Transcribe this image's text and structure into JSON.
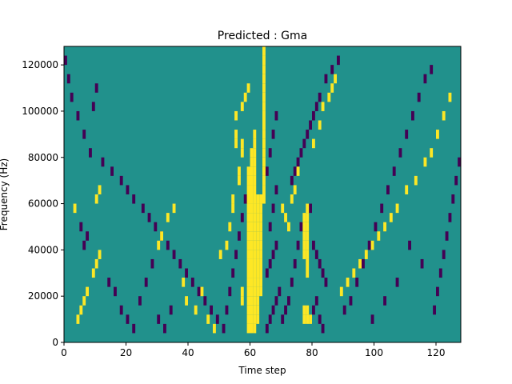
{
  "chart_data": {
    "type": "heatmap",
    "title": "Predicted : Gma",
    "xlabel": "Time step",
    "ylabel": "Frequency (Hz)",
    "xlim": [
      0,
      128
    ],
    "ylim": [
      0,
      128000
    ],
    "x_ticks": [
      0,
      20,
      40,
      60,
      80,
      100,
      120
    ],
    "y_ticks": [
      0,
      20000,
      40000,
      60000,
      80000,
      100000,
      120000
    ],
    "x_tick_labels": [
      "0",
      "20",
      "40",
      "60",
      "80",
      "100",
      "120"
    ],
    "y_tick_labels": [
      "0",
      "20000",
      "40000",
      "60000",
      "80000",
      "100000",
      "120000"
    ],
    "grid": false,
    "colormap": "viridis",
    "level_colors": {
      "low": "#440154",
      "mid": "#21918c",
      "high": "#fde725"
    },
    "background_level": "mid",
    "cell_height_hz": 4000,
    "high_cells": [
      [
        59,
        1
      ],
      [
        59,
        2
      ],
      [
        59,
        3
      ],
      [
        59,
        4
      ],
      [
        59,
        5
      ],
      [
        59,
        6
      ],
      [
        59,
        7
      ],
      [
        59,
        8
      ],
      [
        59,
        9
      ],
      [
        59,
        10
      ],
      [
        59,
        11
      ],
      [
        59,
        12
      ],
      [
        59,
        13
      ],
      [
        59,
        14
      ],
      [
        59,
        15
      ],
      [
        59,
        16
      ],
      [
        59,
        17
      ],
      [
        59,
        18
      ],
      [
        60,
        1
      ],
      [
        60,
        2
      ],
      [
        60,
        3
      ],
      [
        60,
        4
      ],
      [
        60,
        5
      ],
      [
        60,
        6
      ],
      [
        60,
        7
      ],
      [
        60,
        8
      ],
      [
        60,
        9
      ],
      [
        60,
        10
      ],
      [
        60,
        11
      ],
      [
        60,
        12
      ],
      [
        60,
        13
      ],
      [
        60,
        14
      ],
      [
        60,
        15
      ],
      [
        60,
        16
      ],
      [
        60,
        17
      ],
      [
        60,
        18
      ],
      [
        60,
        19
      ],
      [
        60,
        20
      ],
      [
        61,
        1
      ],
      [
        61,
        2
      ],
      [
        61,
        3
      ],
      [
        61,
        4
      ],
      [
        61,
        5
      ],
      [
        61,
        6
      ],
      [
        61,
        7
      ],
      [
        61,
        8
      ],
      [
        61,
        9
      ],
      [
        61,
        10
      ],
      [
        61,
        11
      ],
      [
        61,
        12
      ],
      [
        61,
        13
      ],
      [
        61,
        14
      ],
      [
        61,
        15
      ],
      [
        61,
        16
      ],
      [
        61,
        17
      ],
      [
        61,
        18
      ],
      [
        61,
        19
      ],
      [
        61,
        20
      ],
      [
        61,
        21
      ],
      [
        61,
        22
      ],
      [
        62,
        2
      ],
      [
        62,
        3
      ],
      [
        62,
        4
      ],
      [
        62,
        5
      ],
      [
        62,
        6
      ],
      [
        62,
        7
      ],
      [
        62,
        8
      ],
      [
        62,
        9
      ],
      [
        62,
        10
      ],
      [
        62,
        11
      ],
      [
        62,
        12
      ],
      [
        62,
        13
      ],
      [
        62,
        14
      ],
      [
        62,
        15
      ],
      [
        63,
        5
      ],
      [
        63,
        6
      ],
      [
        63,
        7
      ],
      [
        63,
        8
      ],
      [
        63,
        9
      ],
      [
        63,
        10
      ],
      [
        63,
        11
      ],
      [
        63,
        12
      ],
      [
        63,
        13
      ],
      [
        63,
        14
      ],
      [
        63,
        15
      ],
      [
        64,
        15
      ],
      [
        64,
        16
      ],
      [
        64,
        17
      ],
      [
        64,
        18
      ],
      [
        64,
        19
      ],
      [
        64,
        20
      ],
      [
        64,
        21
      ],
      [
        64,
        22
      ],
      [
        64,
        23
      ],
      [
        64,
        24
      ],
      [
        64,
        25
      ],
      [
        64,
        26
      ],
      [
        64,
        27
      ],
      [
        64,
        28
      ],
      [
        64,
        29
      ],
      [
        64,
        30
      ],
      [
        64,
        31
      ],
      [
        77,
        9
      ],
      [
        77,
        10
      ],
      [
        77,
        11
      ],
      [
        77,
        12
      ],
      [
        77,
        13
      ],
      [
        78,
        7
      ],
      [
        78,
        8
      ],
      [
        78,
        9
      ],
      [
        78,
        10
      ],
      [
        78,
        11
      ],
      [
        78,
        12
      ],
      [
        78,
        13
      ],
      [
        78,
        14
      ],
      [
        77,
        2
      ],
      [
        77,
        3
      ],
      [
        78,
        2
      ],
      [
        78,
        3
      ],
      [
        79,
        2
      ],
      [
        56,
        17
      ],
      [
        56,
        18
      ],
      [
        57,
        20
      ],
      [
        57,
        21
      ],
      [
        55,
        21
      ],
      [
        55,
        22
      ],
      [
        54,
        14
      ],
      [
        54,
        15
      ],
      [
        57,
        4
      ],
      [
        57,
        5
      ],
      [
        4,
        2
      ],
      [
        5,
        3
      ],
      [
        6,
        4
      ],
      [
        7,
        5
      ],
      [
        9,
        7
      ],
      [
        10,
        8
      ],
      [
        11,
        9
      ],
      [
        3,
        14
      ],
      [
        10,
        15
      ],
      [
        11,
        16
      ],
      [
        38,
        6
      ],
      [
        39,
        4
      ],
      [
        42,
        3
      ],
      [
        44,
        5
      ],
      [
        46,
        2
      ],
      [
        48,
        1
      ],
      [
        50,
        9
      ],
      [
        52,
        10
      ],
      [
        53,
        12
      ],
      [
        55,
        24
      ],
      [
        57,
        25
      ],
      [
        58,
        26
      ],
      [
        59,
        27
      ],
      [
        30,
        10
      ],
      [
        31,
        11
      ],
      [
        33,
        13
      ],
      [
        35,
        14
      ],
      [
        70,
        14
      ],
      [
        71,
        13
      ],
      [
        72,
        12
      ],
      [
        73,
        15
      ],
      [
        74,
        16
      ],
      [
        75,
        18
      ],
      [
        80,
        21
      ],
      [
        82,
        23
      ],
      [
        83,
        25
      ],
      [
        85,
        26
      ],
      [
        86,
        27
      ],
      [
        87,
        28
      ],
      [
        89,
        5
      ],
      [
        91,
        6
      ],
      [
        93,
        7
      ],
      [
        95,
        8
      ],
      [
        97,
        9
      ],
      [
        99,
        10
      ],
      [
        101,
        11
      ],
      [
        103,
        12
      ],
      [
        105,
        13
      ],
      [
        107,
        14
      ],
      [
        110,
        16
      ],
      [
        113,
        17
      ],
      [
        116,
        19
      ],
      [
        118,
        20
      ],
      [
        120,
        22
      ],
      [
        122,
        24
      ],
      [
        124,
        26
      ]
    ],
    "low_cells": [
      [
        0,
        30
      ],
      [
        1,
        28
      ],
      [
        2,
        26
      ],
      [
        4,
        24
      ],
      [
        6,
        22
      ],
      [
        8,
        20
      ],
      [
        12,
        19
      ],
      [
        15,
        18
      ],
      [
        18,
        17
      ],
      [
        20,
        16
      ],
      [
        22,
        15
      ],
      [
        25,
        14
      ],
      [
        27,
        13
      ],
      [
        29,
        12
      ],
      [
        31,
        11
      ],
      [
        33,
        10
      ],
      [
        35,
        9
      ],
      [
        37,
        8
      ],
      [
        39,
        7
      ],
      [
        41,
        6
      ],
      [
        43,
        5
      ],
      [
        45,
        4
      ],
      [
        47,
        3
      ],
      [
        49,
        2
      ],
      [
        51,
        1
      ],
      [
        52,
        3
      ],
      [
        53,
        5
      ],
      [
        54,
        7
      ],
      [
        55,
        9
      ],
      [
        56,
        11
      ],
      [
        57,
        13
      ],
      [
        58,
        15
      ],
      [
        65,
        1
      ],
      [
        66,
        2
      ],
      [
        67,
        3
      ],
      [
        68,
        4
      ],
      [
        69,
        5
      ],
      [
        65,
        7
      ],
      [
        66,
        8
      ],
      [
        67,
        9
      ],
      [
        68,
        10
      ],
      [
        66,
        12
      ],
      [
        67,
        14
      ],
      [
        68,
        16
      ],
      [
        65,
        18
      ],
      [
        66,
        20
      ],
      [
        67,
        22
      ],
      [
        68,
        24
      ],
      [
        70,
        2
      ],
      [
        71,
        3
      ],
      [
        72,
        4
      ],
      [
        73,
        6
      ],
      [
        74,
        8
      ],
      [
        75,
        10
      ],
      [
        76,
        12
      ],
      [
        79,
        14
      ],
      [
        80,
        10
      ],
      [
        81,
        9
      ],
      [
        82,
        8
      ],
      [
        83,
        7
      ],
      [
        84,
        6
      ],
      [
        80,
        3
      ],
      [
        81,
        4
      ],
      [
        82,
        2
      ],
      [
        83,
        1
      ],
      [
        73,
        17
      ],
      [
        74,
        18
      ],
      [
        75,
        19
      ],
      [
        76,
        20
      ],
      [
        77,
        21
      ],
      [
        78,
        22
      ],
      [
        79,
        23
      ],
      [
        80,
        24
      ],
      [
        81,
        25
      ],
      [
        82,
        26
      ],
      [
        84,
        28
      ],
      [
        86,
        29
      ],
      [
        88,
        30
      ],
      [
        90,
        3
      ],
      [
        92,
        4
      ],
      [
        94,
        6
      ],
      [
        96,
        8
      ],
      [
        98,
        10
      ],
      [
        100,
        12
      ],
      [
        102,
        14
      ],
      [
        104,
        16
      ],
      [
        106,
        18
      ],
      [
        108,
        20
      ],
      [
        110,
        22
      ],
      [
        112,
        24
      ],
      [
        114,
        26
      ],
      [
        116,
        28
      ],
      [
        118,
        29
      ],
      [
        120,
        5
      ],
      [
        121,
        7
      ],
      [
        122,
        9
      ],
      [
        123,
        11
      ],
      [
        124,
        13
      ],
      [
        125,
        15
      ],
      [
        126,
        17
      ],
      [
        127,
        19
      ],
      [
        119,
        3
      ],
      [
        115,
        8
      ],
      [
        111,
        10
      ],
      [
        107,
        6
      ],
      [
        103,
        4
      ],
      [
        99,
        2
      ],
      [
        9,
        25
      ],
      [
        10,
        27
      ],
      [
        5,
        12
      ],
      [
        6,
        10
      ],
      [
        7,
        11
      ],
      [
        14,
        6
      ],
      [
        16,
        5
      ],
      [
        18,
        3
      ],
      [
        20,
        2
      ],
      [
        22,
        1
      ],
      [
        24,
        4
      ],
      [
        26,
        6
      ],
      [
        28,
        8
      ],
      [
        30,
        2
      ],
      [
        32,
        1
      ],
      [
        34,
        3
      ]
    ]
  }
}
